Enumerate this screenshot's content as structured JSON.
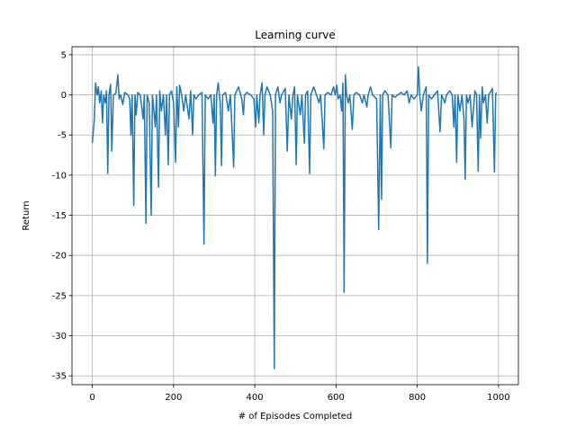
{
  "chart_data": {
    "type": "line",
    "title": "Learning curve",
    "x_label": "# of Episodes Completed",
    "y_label": "Return",
    "grid": true,
    "xlim": [
      -50,
      1049
    ],
    "ylim": [
      -36.1,
      6.0
    ],
    "xticks": [
      0,
      200,
      400,
      600,
      800,
      1000
    ],
    "yticks": [
      -35,
      -30,
      -25,
      -20,
      -15,
      -10,
      -5,
      0,
      5
    ],
    "series": [
      {
        "color": "#1f77b4",
        "x": [
          0,
          5,
          8,
          12,
          15,
          18,
          22,
          25,
          28,
          32,
          35,
          38,
          41,
          45,
          48,
          52,
          58,
          63,
          66,
          70,
          75,
          80,
          88,
          92,
          95,
          98,
          102,
          105,
          108,
          112,
          118,
          125,
          128,
          132,
          135,
          140,
          145,
          148,
          155,
          158,
          163,
          166,
          170,
          175,
          180,
          183,
          187,
          190,
          195,
          200,
          205,
          208,
          212,
          215,
          220,
          225,
          230,
          238,
          242,
          247,
          250,
          255,
          262,
          270,
          275,
          278,
          285,
          292,
          297,
          300,
          303,
          306,
          310,
          315,
          318,
          321,
          328,
          335,
          340,
          348,
          351,
          360,
          368,
          372,
          375,
          380,
          390,
          398,
          402,
          405,
          410,
          413,
          418,
          422,
          425,
          430,
          438,
          444,
          448,
          451,
          457,
          462,
          466,
          475,
          480,
          484,
          490,
          494,
          498,
          502,
          505,
          512,
          516,
          522,
          525,
          530,
          535,
          538,
          545,
          552,
          558,
          562,
          570,
          573,
          580,
          588,
          594,
          598,
          602,
          605,
          610,
          614,
          617,
          620,
          623,
          626,
          630,
          634,
          640,
          644,
          650,
          658,
          665,
          669,
          676,
          679,
          685,
          690,
          700,
          705,
          709,
          712,
          715,
          720,
          728,
          735,
          738,
          745,
          752,
          760,
          768,
          775,
          780,
          785,
          792,
          800,
          803,
          806,
          810,
          815,
          822,
          825,
          828,
          835,
          842,
          850,
          856,
          860,
          868,
          872,
          880,
          886,
          890,
          893,
          897,
          900,
          905,
          910,
          915,
          918,
          921,
          925,
          930,
          935,
          938,
          942,
          946,
          950,
          953,
          956,
          960,
          963,
          968,
          972,
          976,
          985,
          990,
          993,
          995
        ],
        "values": [
          -6,
          -3,
          1.5,
          0,
          1,
          -1,
          0.5,
          -3.5,
          0,
          -1,
          0.5,
          -9.8,
          0,
          1.3,
          -7,
          0,
          0.2,
          2.5,
          -0.5,
          0,
          -1.2,
          0.3,
          0,
          -0.5,
          -5,
          0,
          -13.8,
          0,
          -2.5,
          0.3,
          0,
          -3,
          0,
          -16,
          0,
          -1,
          -15,
          0,
          -4,
          0,
          -11.5,
          0.5,
          -2,
          0,
          -5,
          0,
          -8.7,
          0,
          0.5,
          -1,
          -8.4,
          1,
          -4,
          1.2,
          0,
          -2,
          0,
          -3,
          0.5,
          -5,
          0,
          -0.5,
          0,
          0.3,
          -18.6,
          0,
          -0.5,
          0,
          -3.5,
          0,
          -10.1,
          0,
          1.5,
          -1,
          -8.8,
          0,
          0.3,
          -2,
          0,
          -9,
          0,
          1,
          -0.5,
          -2.5,
          0,
          0.3,
          0,
          -0.5,
          -4,
          0,
          -3.5,
          0,
          1.5,
          -5,
          0,
          1,
          0,
          -2,
          -34.1,
          0,
          1,
          -1,
          0,
          0.8,
          -7,
          0,
          -3,
          0,
          1,
          -8.7,
          0,
          -2.5,
          0,
          -6,
          0,
          0.5,
          -9.8,
          0,
          1,
          0,
          -1,
          0,
          -6.7,
          0,
          0.3,
          0,
          1,
          0,
          1.2,
          -0.5,
          0,
          -2,
          1.5,
          -24.6,
          2.5,
          0,
          -1,
          0,
          -4.3,
          0,
          0.3,
          0,
          -1,
          0,
          -1.5,
          0,
          1,
          0,
          -0.5,
          -16.8,
          0,
          -13,
          0,
          0.5,
          0,
          -6.6,
          0,
          -0.3,
          0,
          0.3,
          0,
          0.5,
          -1,
          0,
          -0.5,
          0,
          3.5,
          0,
          -2,
          0,
          1,
          -21,
          0,
          -0.5,
          0,
          0.5,
          -4.6,
          0,
          -1,
          0,
          0.5,
          0,
          -4,
          0,
          -8.4,
          0,
          -2,
          0,
          -3,
          -10.5,
          0,
          -1,
          0,
          -4,
          -2,
          0.5,
          0,
          -9.5,
          0,
          -5.4,
          1,
          -1,
          0,
          -3.5,
          0,
          0.8,
          -9.6,
          0,
          0.3
        ]
      }
    ]
  }
}
